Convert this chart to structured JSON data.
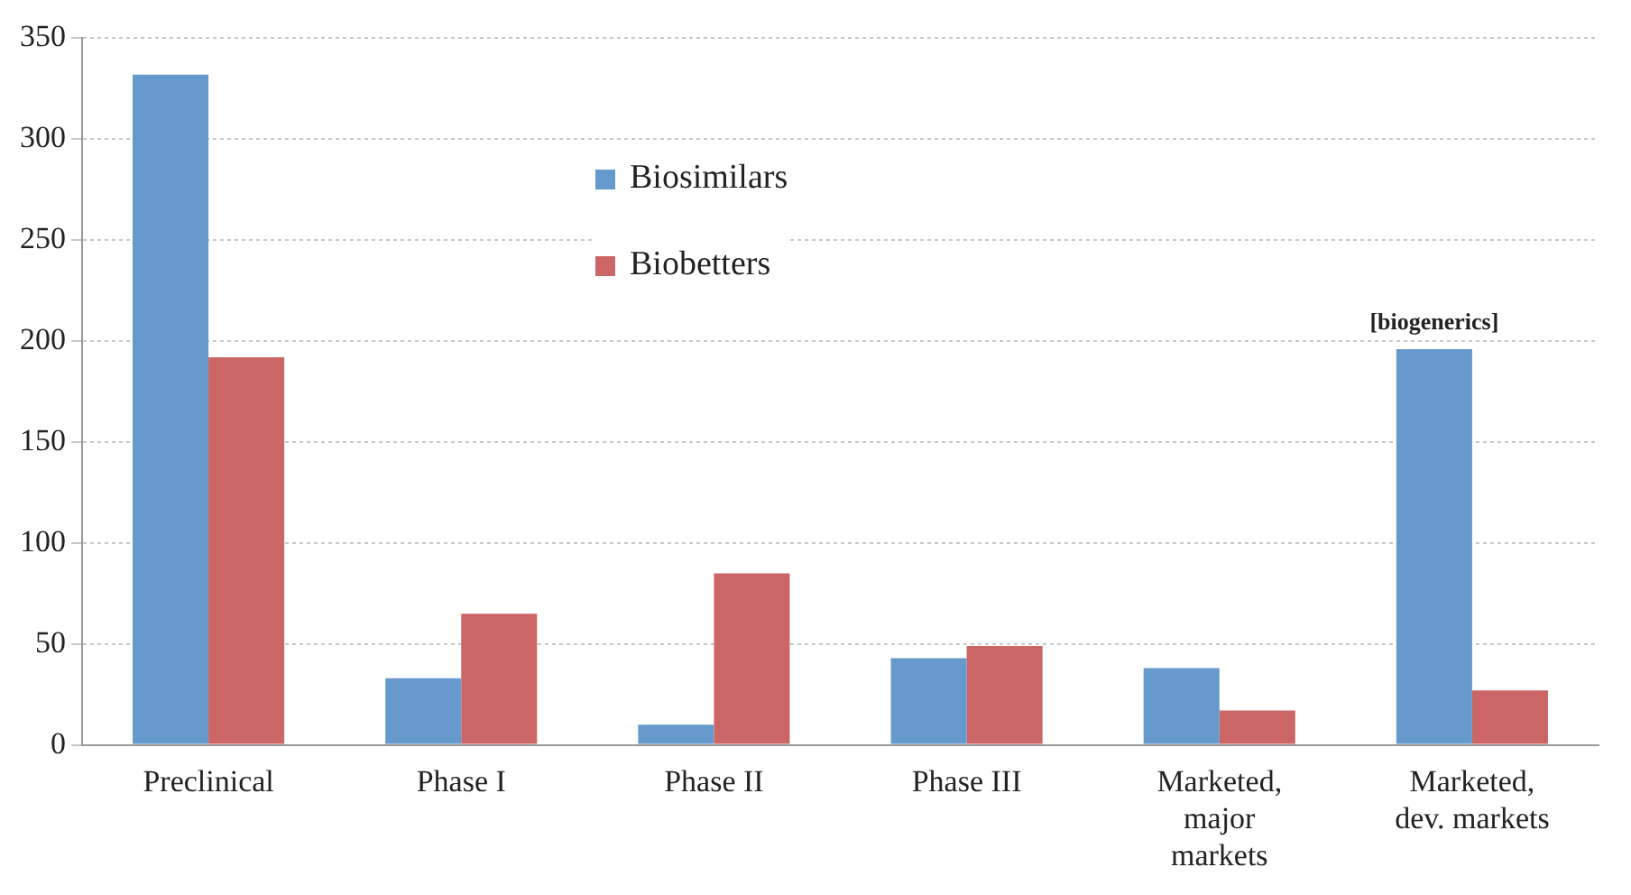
{
  "chart_data": {
    "type": "bar",
    "categories": [
      "Preclinical",
      "Phase I",
      "Phase II",
      "Phase III",
      "Marketed,\nmajor\nmarkets",
      "Marketed,\ndev. markets"
    ],
    "series": [
      {
        "name": "Biosimilars",
        "color": "#6699cc",
        "values": [
          332,
          33,
          10,
          43,
          38,
          196
        ]
      },
      {
        "name": "Biobetters",
        "color": "#cc6666",
        "values": [
          192,
          65,
          85,
          49,
          17,
          27
        ]
      }
    ],
    "ylim": [
      0,
      350
    ],
    "yticks": [
      0,
      50,
      100,
      150,
      200,
      250,
      300,
      350
    ],
    "grid": "y",
    "legend": "top",
    "annotations": [
      {
        "text": "[biogenerics]",
        "x": "Marketed,\ndev. markets",
        "y": 196
      }
    ]
  }
}
